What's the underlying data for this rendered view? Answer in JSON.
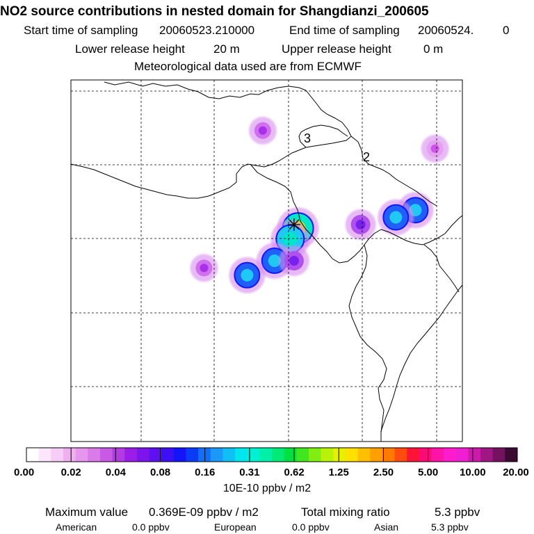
{
  "header": {
    "title": "NO2 source contributions in nested domain for Shangdianzi_200605",
    "start_label": "Start time of sampling",
    "start_value": "20060523.210000",
    "end_label": "End time of sampling",
    "end_value": "20060524.",
    "end_suffix": "0",
    "lower_label": "Lower release height",
    "lower_value": "20 m",
    "upper_label": "Upper release height",
    "upper_value": "0 m",
    "met": "Meteorological data used are from ECMWF"
  },
  "map": {
    "grid_labels": [
      "3",
      "2"
    ]
  },
  "colors": {
    "scale": [
      "#ffffff",
      "#fbe6fb",
      "#f6cdf6",
      "#f0b0f0",
      "#e696ee",
      "#d97be8",
      "#c85ae6",
      "#b43ae6",
      "#9a1ee8",
      "#7d14ec",
      "#5e10f0",
      "#3d0ff4",
      "#1414f8",
      "#0a3cf8",
      "#1270f8",
      "#1c98f8",
      "#10c0f4",
      "#00e6ee",
      "#00f0d2",
      "#00f0a8",
      "#00ea78",
      "#00e040",
      "#40e620",
      "#80ee10",
      "#b8f208",
      "#e6f000",
      "#ffe000",
      "#ffc000",
      "#ffa000",
      "#ff7a00",
      "#ff4a10",
      "#ff1436",
      "#ff0a78",
      "#ff14a8",
      "#ff1ccc",
      "#f01ed2",
      "#cc1aaa",
      "#a01682",
      "#741260",
      "#3c0a30"
    ]
  },
  "chart_data": {
    "type": "heatmap",
    "title": "NO2 source contributions in nested domain for Shangdianzi_200605",
    "colorbar": {
      "tick_labels": [
        "0.00",
        "0.02",
        "0.04",
        "0.08",
        "0.16",
        "0.31",
        "0.62",
        "1.25",
        "2.50",
        "5.00",
        "10.00",
        "20.00"
      ],
      "units_label": "10E-10 ppbv / m2"
    },
    "plumes": [
      {
        "x": 0.58,
        "y": 0.41,
        "level": 6
      },
      {
        "x": 0.56,
        "y": 0.44,
        "level": 5
      },
      {
        "x": 0.52,
        "y": 0.5,
        "level": 4
      },
      {
        "x": 0.45,
        "y": 0.54,
        "level": 4
      },
      {
        "x": 0.57,
        "y": 0.5,
        "level": 3
      },
      {
        "x": 0.88,
        "y": 0.36,
        "level": 4
      },
      {
        "x": 0.83,
        "y": 0.38,
        "level": 4
      },
      {
        "x": 0.74,
        "y": 0.4,
        "level": 3
      },
      {
        "x": 0.49,
        "y": 0.14,
        "level": 2
      },
      {
        "x": 0.34,
        "y": 0.52,
        "level": 2
      },
      {
        "x": 0.93,
        "y": 0.19,
        "level": 1
      }
    ],
    "receptor": {
      "x": 0.57,
      "y": 0.4
    }
  },
  "footer": {
    "max_label": "Maximum value",
    "max_value": "0.369E-09 ppbv / m2",
    "total_label": "Total mixing ratio",
    "total_value": "5.3 ppbv",
    "american_label": "American",
    "american_value": "0.0 ppbv",
    "european_label": "European",
    "european_value": "0.0 ppbv",
    "asian_label": "Asian",
    "asian_value": "5.3 ppbv"
  }
}
